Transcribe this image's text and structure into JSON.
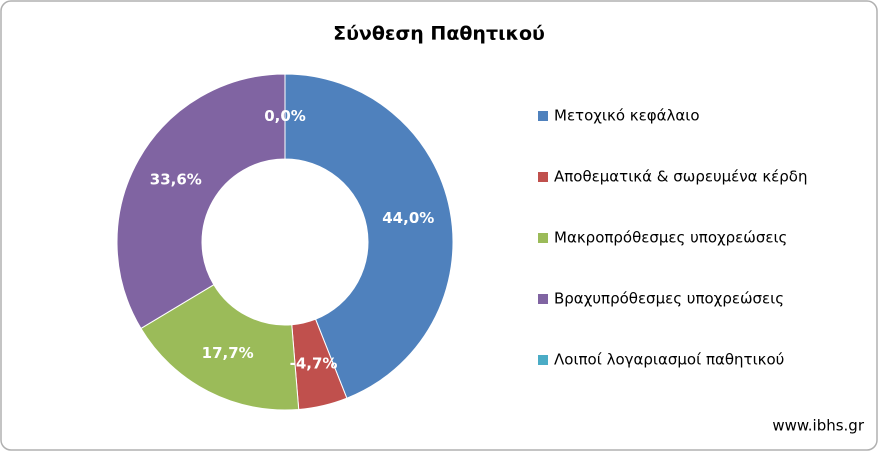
{
  "chart_data": {
    "type": "donut",
    "title": "Σύνθεση Παθητικού",
    "categories": [
      "Μετοχικό κεφάλαιο",
      "Αποθεματικά & σωρευμένα κέρδη",
      "Μακροπρόθεσμες υποχρεώσεις",
      "Βραχυπρόθεσμες υποχρεώσεις",
      "Λοιποί λογαριασμοί παθητικού"
    ],
    "values": [
      44.0,
      -4.7,
      17.7,
      33.6,
      0.0
    ],
    "value_labels": [
      "44,0%",
      "-4,7%",
      "17,7%",
      "33,6%",
      "0,0%"
    ],
    "colors": [
      "#4f81bd",
      "#c0504d",
      "#9bbb59",
      "#8064a2",
      "#4bacc6"
    ],
    "legend": "right",
    "source": "www.ibhs.gr"
  }
}
